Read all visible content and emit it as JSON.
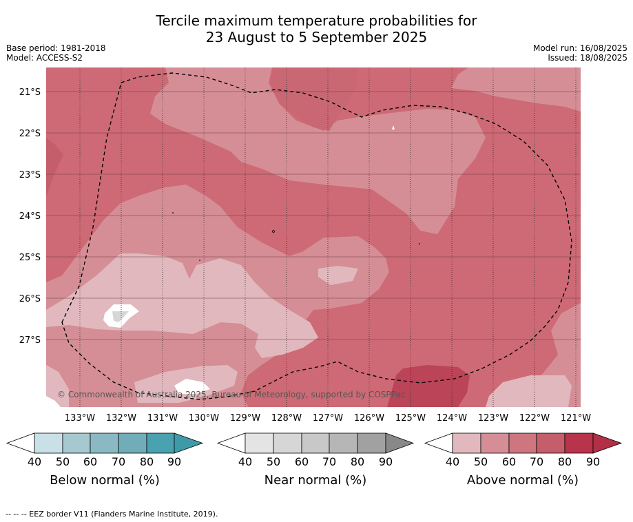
{
  "title_line1": "Tercile maximum temperature probabilities for",
  "title_line2": "23 August to 5 September 2025",
  "base_period": "Base period: 1981-2018",
  "model": "Model: ACCESS-S2",
  "model_run": "Model run: 16/08/2025",
  "issued": "Issued: 18/08/2025",
  "copyright": "© Commonwealth of Australia 2025, Bureau of Meteorology, supported by COSPPac",
  "footer_note": "--  --  -- EEZ border V11 (Flanders Marine Institute, 2019).",
  "map": {
    "lon_labels": [
      "133°W",
      "132°W",
      "131°W",
      "130°W",
      "129°W",
      "128°W",
      "127°W",
      "126°W",
      "125°W",
      "124°W",
      "123°W",
      "122°W",
      "121°W"
    ],
    "lat_labels": [
      "21°S",
      "22°S",
      "23°S",
      "24°S",
      "25°S",
      "26°S",
      "27°S"
    ]
  },
  "legends": [
    {
      "title": "Below normal (%)",
      "ticks": [
        "40",
        "50",
        "60",
        "70",
        "80",
        "90"
      ],
      "colors": [
        "#ffffff",
        "#c9e1e6",
        "#a6c9cf",
        "#8ab9c3",
        "#71adb8",
        "#4aa1af",
        "#3f9aa8"
      ]
    },
    {
      "title": "Near normal (%)",
      "ticks": [
        "40",
        "50",
        "60",
        "70",
        "80",
        "90"
      ],
      "colors": [
        "#ffffff",
        "#e4e4e4",
        "#d6d6d6",
        "#c8c8c8",
        "#b6b6b6",
        "#a1a1a1",
        "#888888"
      ]
    },
    {
      "title": "Above normal (%)",
      "ticks": [
        "40",
        "50",
        "60",
        "70",
        "80",
        "90"
      ],
      "colors": [
        "#ffffff",
        "#e1b8bd",
        "#d58e96",
        "#cd7680",
        "#c45e6a",
        "#b8344a",
        "#b22f45"
      ]
    }
  ]
}
